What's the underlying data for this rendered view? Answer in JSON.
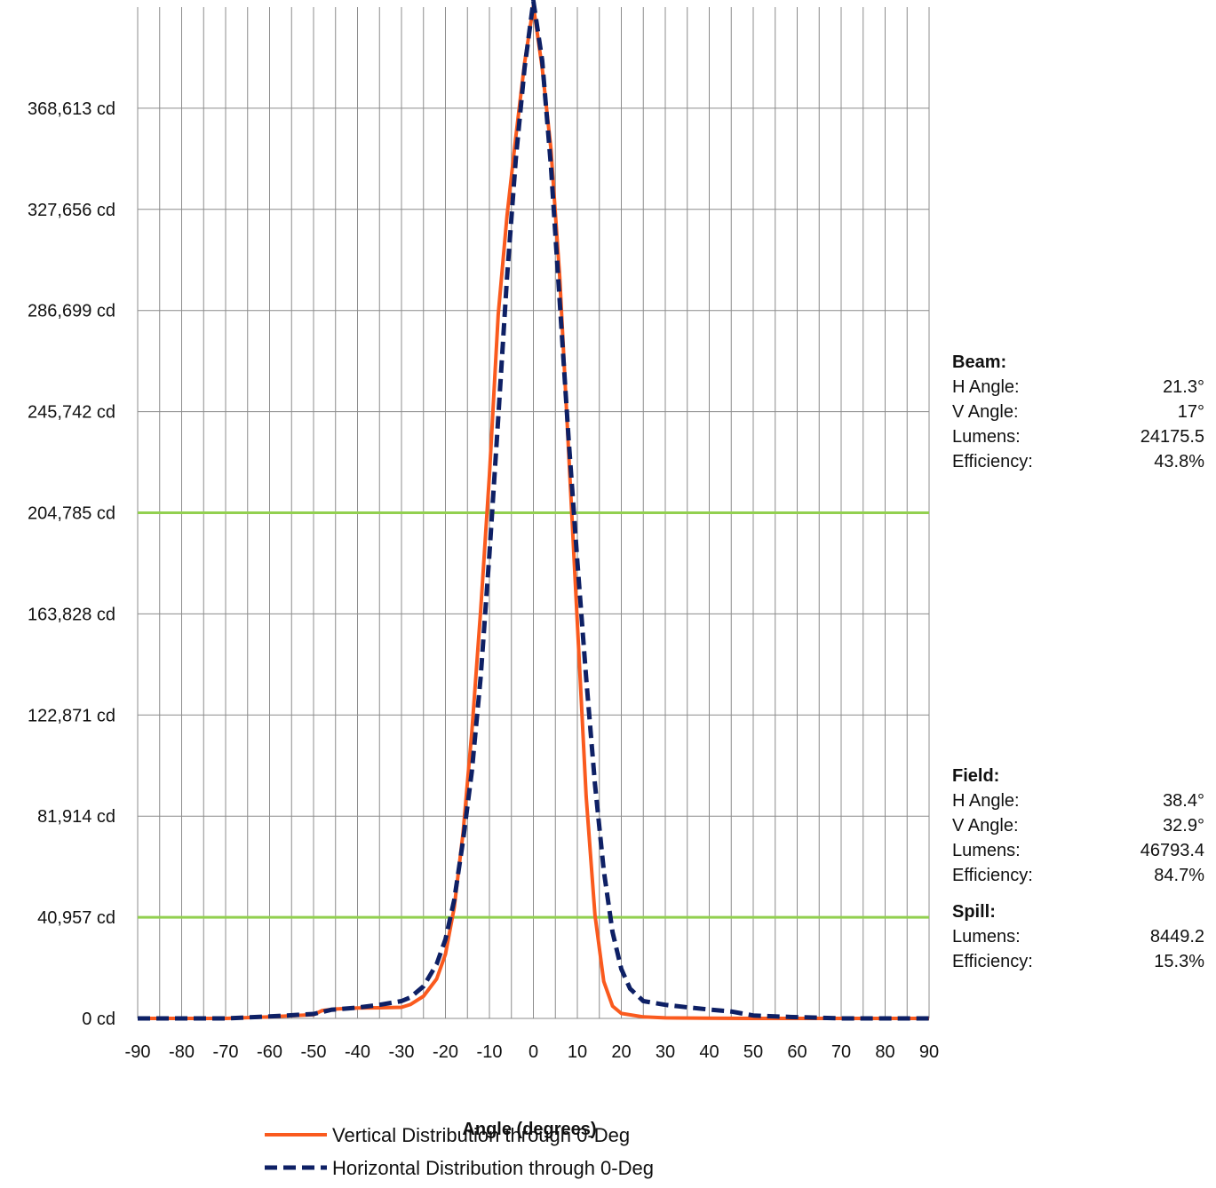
{
  "chart_data": {
    "type": "line",
    "xlabel": "Angle (degrees)",
    "x_ticks": [
      "-90",
      "-80",
      "-70",
      "-60",
      "-50",
      "-40",
      "-30",
      "-20",
      "-10",
      "0",
      "10",
      "20",
      "30",
      "40",
      "50",
      "60",
      "70",
      "80",
      "90"
    ],
    "xlim": [
      -90,
      90
    ],
    "y_ticks": [
      "0 cd",
      "40,957 cd",
      "81,914 cd",
      "122,871 cd",
      "163,828 cd",
      "204,785 cd",
      "245,742 cd",
      "286,699 cd",
      "327,656 cd",
      "368,613 cd"
    ],
    "y_tick_values": [
      0,
      40957,
      81914,
      122871,
      163828,
      204785,
      245742,
      286699,
      327656,
      368613
    ],
    "ylim": [
      0,
      409570
    ],
    "grid": true,
    "reference_lines": [
      {
        "value": 40957,
        "color": "#92d050"
      },
      {
        "value": 204785,
        "color": "#92d050"
      }
    ],
    "legend_position": "bottom",
    "series": [
      {
        "name": "Vertical Distribution through 0-Deg",
        "color": "#fa5a1e",
        "style": "solid",
        "points": [
          [
            -90,
            0
          ],
          [
            -80,
            0
          ],
          [
            -70,
            0
          ],
          [
            -60,
            600
          ],
          [
            -50,
            1500
          ],
          [
            -48,
            3200
          ],
          [
            -45,
            3800
          ],
          [
            -40,
            4200
          ],
          [
            -35,
            4300
          ],
          [
            -30,
            4500
          ],
          [
            -28,
            5600
          ],
          [
            -25,
            9000
          ],
          [
            -22,
            16000
          ],
          [
            -20,
            26000
          ],
          [
            -18,
            45000
          ],
          [
            -16,
            75000
          ],
          [
            -14,
            116000
          ],
          [
            -12,
            165000
          ],
          [
            -10,
            220000
          ],
          [
            -8,
            285000
          ],
          [
            -6,
            325000
          ],
          [
            -4,
            357000
          ],
          [
            -2,
            387000
          ],
          [
            0,
            410000
          ],
          [
            2,
            385000
          ],
          [
            4,
            352000
          ],
          [
            6,
            300000
          ],
          [
            8,
            230000
          ],
          [
            10,
            160000
          ],
          [
            12,
            90000
          ],
          [
            14,
            42000
          ],
          [
            16,
            15000
          ],
          [
            18,
            5000
          ],
          [
            20,
            2000
          ],
          [
            25,
            600
          ],
          [
            30,
            200
          ],
          [
            40,
            100
          ],
          [
            50,
            0
          ],
          [
            60,
            0
          ],
          [
            70,
            0
          ],
          [
            80,
            0
          ],
          [
            90,
            0
          ]
        ]
      },
      {
        "name": "Horizontal Distribution through 0-Deg",
        "color": "#0e2065",
        "style": "dashed",
        "points": [
          [
            -90,
            0
          ],
          [
            -80,
            0
          ],
          [
            -70,
            0
          ],
          [
            -60,
            800
          ],
          [
            -50,
            1800
          ],
          [
            -46,
            3500
          ],
          [
            -40,
            4400
          ],
          [
            -35,
            5500
          ],
          [
            -30,
            7000
          ],
          [
            -28,
            8500
          ],
          [
            -25,
            13000
          ],
          [
            -22,
            22000
          ],
          [
            -20,
            32000
          ],
          [
            -18,
            48000
          ],
          [
            -16,
            72000
          ],
          [
            -14,
            100000
          ],
          [
            -12,
            138000
          ],
          [
            -10,
            188000
          ],
          [
            -8,
            243000
          ],
          [
            -6,
            300000
          ],
          [
            -4,
            348000
          ],
          [
            -2,
            385000
          ],
          [
            0,
            412000
          ],
          [
            2,
            388000
          ],
          [
            4,
            345000
          ],
          [
            6,
            290000
          ],
          [
            8,
            235000
          ],
          [
            10,
            185000
          ],
          [
            12,
            138000
          ],
          [
            14,
            95000
          ],
          [
            16,
            60000
          ],
          [
            18,
            35000
          ],
          [
            20,
            20000
          ],
          [
            22,
            12000
          ],
          [
            25,
            7000
          ],
          [
            30,
            5500
          ],
          [
            35,
            4500
          ],
          [
            40,
            3600
          ],
          [
            45,
            2800
          ],
          [
            50,
            1200
          ],
          [
            55,
            800
          ],
          [
            60,
            500
          ],
          [
            65,
            300
          ],
          [
            70,
            0
          ],
          [
            80,
            0
          ],
          [
            90,
            0
          ]
        ]
      }
    ]
  },
  "stats": {
    "beam": {
      "title": "Beam:",
      "rows": [
        {
          "label": "H Angle:",
          "value": "21.3°"
        },
        {
          "label": "V Angle:",
          "value": "17°"
        },
        {
          "label": "Lumens:",
          "value": "24175.5"
        },
        {
          "label": "Efficiency:",
          "value": "43.8%"
        }
      ]
    },
    "field": {
      "title": "Field:",
      "rows": [
        {
          "label": "H Angle:",
          "value": "38.4°"
        },
        {
          "label": "V Angle:",
          "value": "32.9°"
        },
        {
          "label": "Lumens:",
          "value": "46793.4"
        },
        {
          "label": "Efficiency:",
          "value": "84.7%"
        }
      ]
    },
    "spill": {
      "title": "Spill:",
      "rows": [
        {
          "label": "Lumens:",
          "value": "8449.2"
        },
        {
          "label": "Efficiency:",
          "value": "15.3%"
        }
      ]
    }
  }
}
